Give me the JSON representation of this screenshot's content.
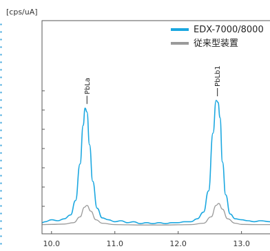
{
  "chart_data": {
    "type": "line",
    "ylabel": "[cps/uA]",
    "xlim": [
      9.85,
      13.45
    ],
    "ylim": [
      0,
      10
    ],
    "x_ticks": [
      10.0,
      11.0,
      12.0,
      13.0
    ],
    "x_tick_labels": [
      "10.0",
      "11.0",
      "12.0",
      "13.0"
    ],
    "y_ticks": [
      1,
      2,
      3,
      4,
      5,
      6,
      7
    ],
    "legend_position": "top-right",
    "series": [
      {
        "name": "EDX-7000/8000",
        "color": "#1aa7e0",
        "x": [
          9.85,
          9.9,
          10.0,
          10.1,
          10.2,
          10.3,
          10.38,
          10.45,
          10.5,
          10.53,
          10.56,
          10.6,
          10.65,
          10.72,
          10.8,
          10.9,
          11.0,
          11.1,
          11.2,
          11.3,
          11.4,
          11.5,
          11.6,
          11.7,
          11.8,
          11.9,
          12.0,
          12.1,
          12.2,
          12.3,
          12.4,
          12.48,
          12.55,
          12.6,
          12.63,
          12.66,
          12.7,
          12.75,
          12.82,
          12.9,
          13.0,
          13.1,
          13.2,
          13.3,
          13.45
        ],
        "values": [
          0.15,
          0.2,
          0.3,
          0.25,
          0.35,
          0.55,
          1.3,
          3.2,
          5.2,
          6.1,
          5.9,
          4.2,
          2.3,
          0.9,
          0.4,
          0.3,
          0.2,
          0.25,
          0.15,
          0.2,
          0.1,
          0.15,
          0.1,
          0.15,
          0.1,
          0.15,
          0.15,
          0.2,
          0.2,
          0.35,
          0.7,
          1.8,
          4.8,
          6.5,
          6.4,
          5.6,
          3.3,
          1.6,
          0.6,
          0.35,
          0.3,
          0.25,
          0.2,
          0.25,
          0.2
        ]
      },
      {
        "name": "従来型装置",
        "color": "#9a9a9a",
        "x": [
          9.85,
          10.0,
          10.2,
          10.35,
          10.45,
          10.52,
          10.56,
          10.62,
          10.7,
          10.8,
          11.0,
          11.2,
          11.4,
          11.6,
          11.8,
          12.0,
          12.2,
          12.4,
          12.52,
          12.6,
          12.64,
          12.7,
          12.78,
          12.9,
          13.0,
          13.2,
          13.45
        ],
        "values": [
          0.05,
          0.06,
          0.08,
          0.15,
          0.45,
          0.95,
          1.05,
          0.75,
          0.3,
          0.12,
          0.05,
          0.04,
          0.03,
          0.03,
          0.03,
          0.04,
          0.05,
          0.12,
          0.45,
          1.05,
          1.15,
          0.85,
          0.35,
          0.12,
          0.06,
          0.05,
          0.05
        ]
      }
    ],
    "annotations": [
      {
        "text": "PbLa",
        "x": 10.56,
        "y": 6.1
      },
      {
        "text": "PbLb1",
        "x": 12.62,
        "y": 6.5
      }
    ]
  }
}
